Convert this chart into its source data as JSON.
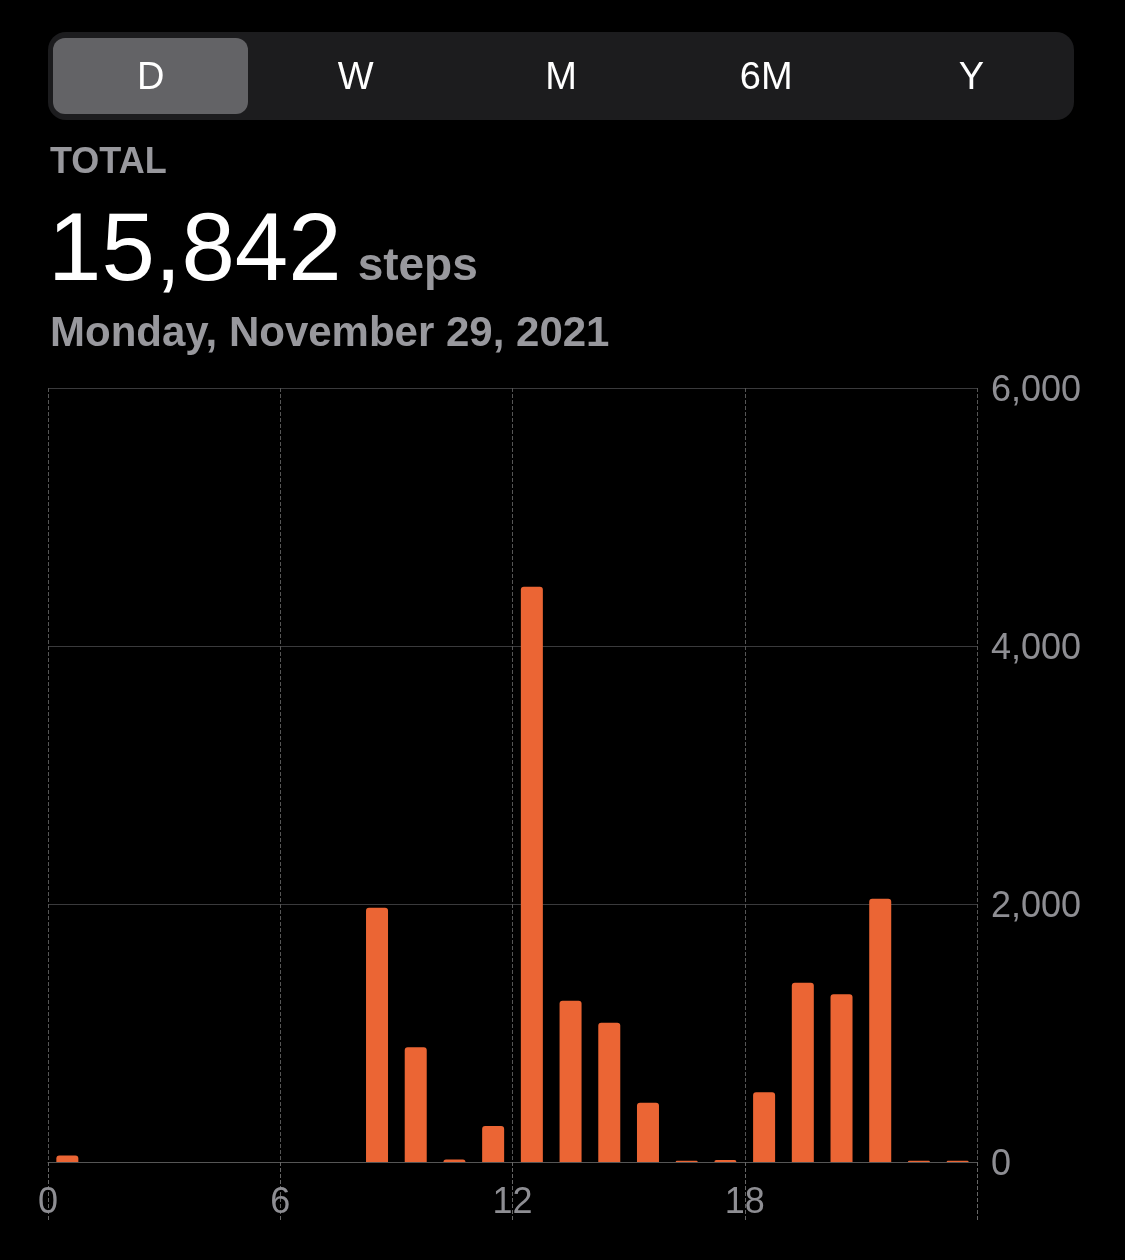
{
  "chart_data": {
    "type": "bar",
    "title": "TOTAL",
    "subtitle": "Monday, November 29, 2021",
    "annotations": [
      "15,842",
      "steps",
      "D",
      "W",
      "M",
      "6M",
      "Y"
    ],
    "x": [
      0.5,
      1.5,
      2.5,
      3.5,
      4.5,
      5.5,
      6.5,
      7.5,
      8.5,
      9.5,
      10.5,
      11.5,
      12.5,
      13.5,
      14.5,
      15.5,
      16.5,
      17.5,
      18.5,
      19.5,
      20.5,
      21.5,
      22.5,
      23.5
    ],
    "series": [
      {
        "color": "#eb6534",
        "values": [
          50,
          0,
          0,
          0,
          0,
          0,
          0,
          0,
          1970,
          890,
          20,
          280,
          4460,
          1250,
          1080,
          460,
          10,
          15,
          540,
          1390,
          1300,
          2040,
          10,
          10
        ]
      }
    ],
    "xlim": [
      0,
      24
    ],
    "xticks": [
      0,
      6,
      12,
      18,
      {
        "value": 24,
        "label": null
      }
    ],
    "ylim": [
      0,
      6000
    ],
    "yticks": [
      0,
      {
        "value": 2000,
        "label": "2,000"
      },
      {
        "value": 4000,
        "label": "4,000"
      },
      {
        "value": 6000,
        "label": "6,000"
      }
    ],
    "grid": true
  }
}
